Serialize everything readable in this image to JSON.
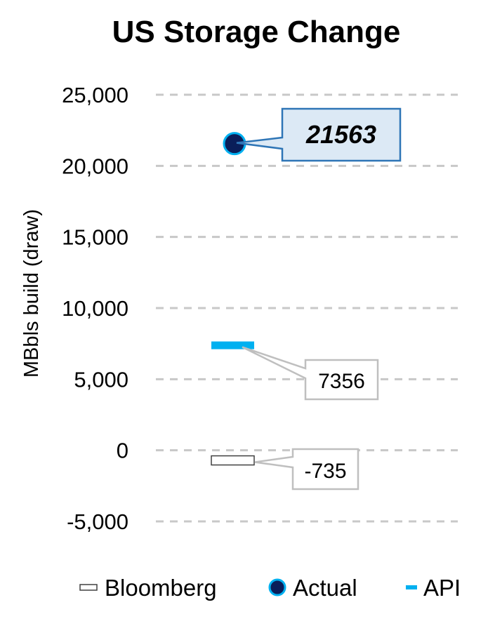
{
  "chart_data": {
    "type": "scatter",
    "title": "US Storage Change",
    "ylabel": "MBbls build (draw)",
    "xlabel": "",
    "ylim": [
      -5000,
      25000
    ],
    "yticks": [
      25000,
      20000,
      15000,
      10000,
      5000,
      0,
      -5000
    ],
    "ytick_labels": [
      "25,000",
      "20,000",
      "15,000",
      "10,000",
      "5,000",
      "0",
      "-5,000"
    ],
    "grid": true,
    "legend_position": "bottom",
    "series": [
      {
        "name": "Bloomberg",
        "value": -735,
        "label": "-735",
        "marker": "dash-outline",
        "color": "#ffffff"
      },
      {
        "name": "Actual",
        "value": 21563,
        "label": "21563",
        "marker": "circle",
        "color": "#0a1e5a"
      },
      {
        "name": "API",
        "value": 7356,
        "label": "7356",
        "marker": "dash",
        "color": "#00b0f0"
      }
    ],
    "legend": [
      "Bloomberg",
      "Actual",
      "API"
    ]
  },
  "colors": {
    "actual_fill": "#0a1e5a",
    "actual_stroke": "#00b0f0",
    "api": "#00b0f0",
    "grid": "#c8c8c8",
    "callout_actual_fill": "#dce9f5",
    "callout_actual_stroke": "#2e75b6",
    "callout_gray_stroke": "#bfbfbf"
  }
}
